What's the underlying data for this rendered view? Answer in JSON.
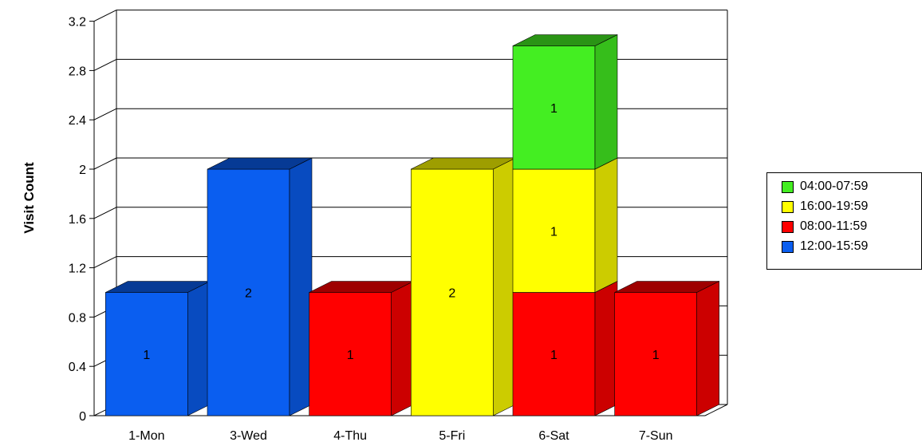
{
  "chart_data": {
    "type": "bar",
    "stacked": true,
    "three_d": true,
    "title": "",
    "xlabel": "",
    "ylabel": "Visit Count",
    "ylim": [
      0,
      3.2
    ],
    "yticks": [
      "0",
      "0.4",
      "0.8",
      "1.2",
      "1.6",
      "2",
      "2.4",
      "2.8",
      "3.2"
    ],
    "categories": [
      "1-Mon",
      "3-Wed",
      "4-Thu",
      "5-Fri",
      "6-Sat",
      "7-Sun"
    ],
    "grid": true,
    "legend_position": "right",
    "series": [
      {
        "name": "12:00-15:59",
        "color": "#0a5ef0",
        "values": [
          1,
          2,
          0,
          0,
          0,
          0
        ]
      },
      {
        "name": "08:00-11:59",
        "color": "#ff0000",
        "values": [
          0,
          0,
          1,
          0,
          1,
          1
        ]
      },
      {
        "name": "16:00-19:59",
        "color": "#ffff00",
        "values": [
          0,
          0,
          0,
          2,
          1,
          0
        ]
      },
      {
        "name": "04:00-07:59",
        "color": "#44ee22",
        "values": [
          0,
          0,
          0,
          0,
          1,
          0
        ]
      }
    ],
    "legend_order": [
      "04:00-07:59",
      "16:00-19:59",
      "08:00-11:59",
      "12:00-15:59"
    ]
  }
}
